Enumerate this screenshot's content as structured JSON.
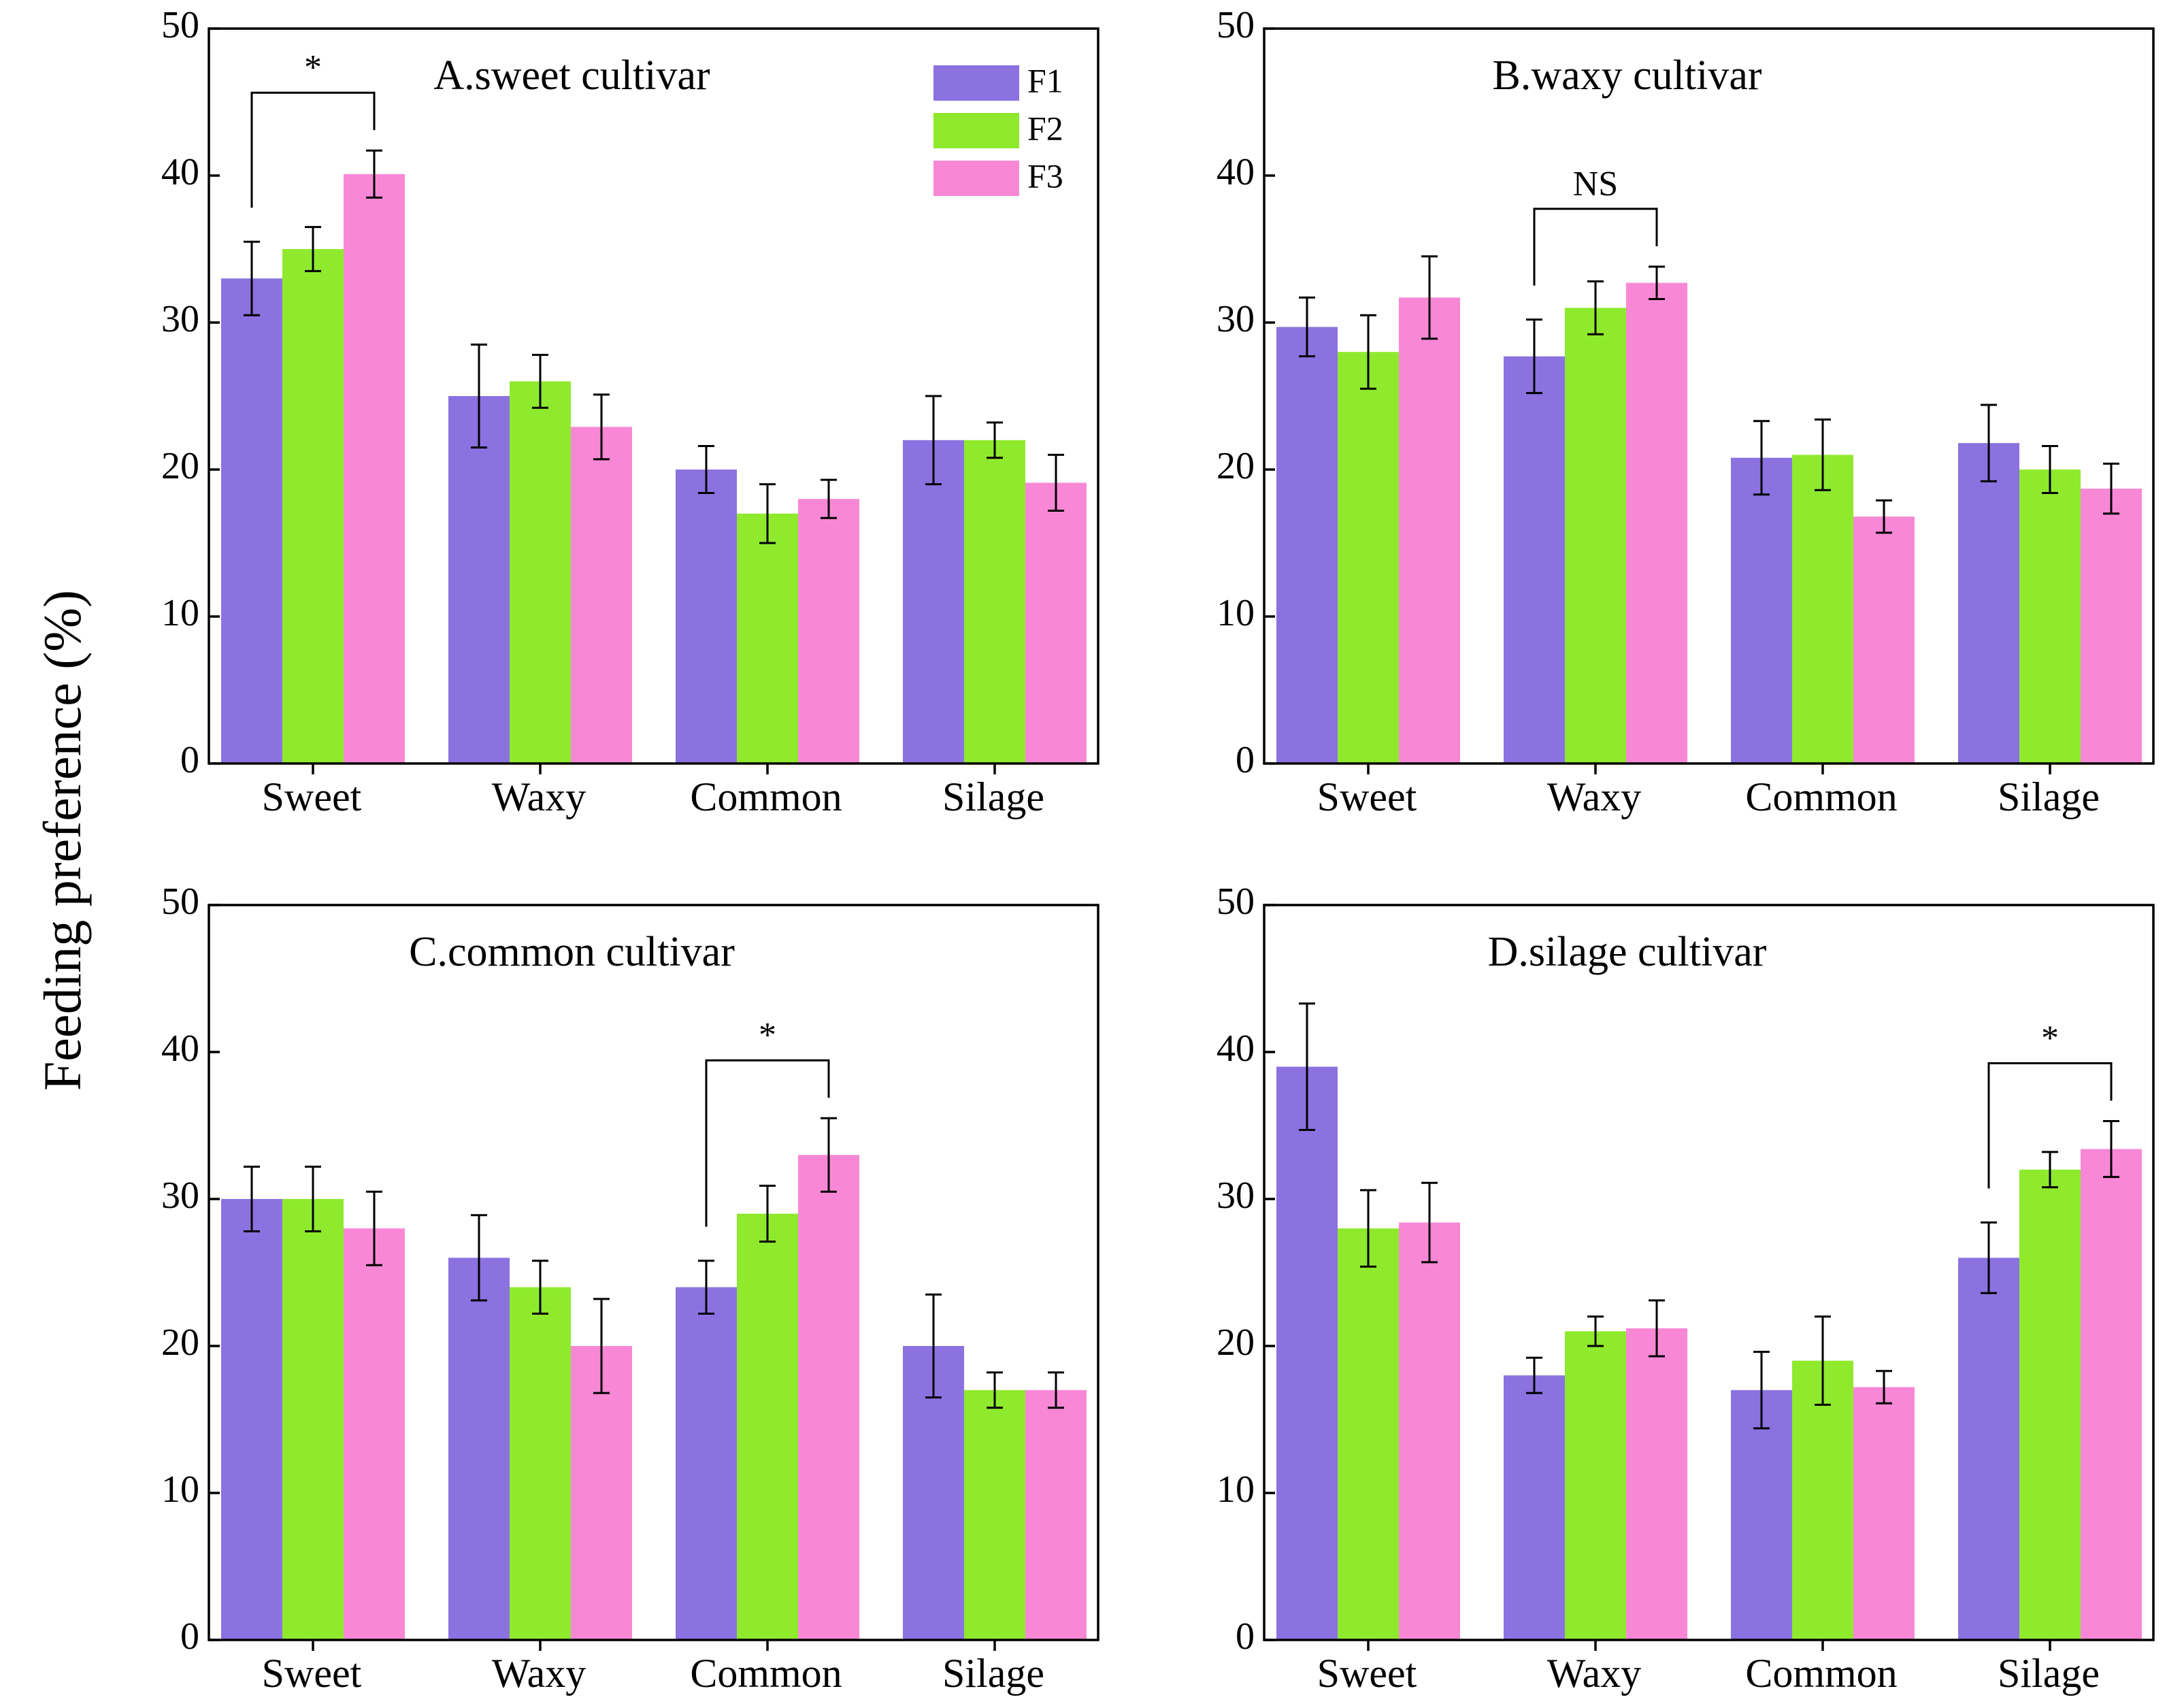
{
  "colors": {
    "F1": "#8B72E0",
    "F2": "#8FEA2E",
    "F3": "#F888D6"
  },
  "ylabel": "Feeding preference (%)",
  "legend": [
    "F1",
    "F2",
    "F3"
  ],
  "chart_data": [
    {
      "type": "bar",
      "title": "A.sweet cultivar",
      "categories": [
        "Sweet",
        "Waxy",
        "Common",
        "Silage"
      ],
      "ylim": [
        0,
        50
      ],
      "yticks": [
        "0",
        "10",
        "20",
        "30",
        "40",
        "50"
      ],
      "series": [
        {
          "name": "F1",
          "values": [
            33,
            25,
            20,
            22
          ],
          "errors": [
            2.5,
            3.5,
            1.6,
            3.0
          ]
        },
        {
          "name": "F2",
          "values": [
            35,
            26,
            17,
            22
          ],
          "errors": [
            1.5,
            1.8,
            2.0,
            1.2
          ]
        },
        {
          "name": "F3",
          "values": [
            40.1,
            22.9,
            18,
            19.1
          ],
          "errors": [
            1.6,
            2.2,
            1.3,
            1.9
          ]
        }
      ],
      "significance": {
        "label": "*",
        "category": "Sweet",
        "from": "F1",
        "to": "F3"
      },
      "legend": true
    },
    {
      "type": "bar",
      "title": "B.waxy cultivar",
      "categories": [
        "Sweet",
        "Waxy",
        "Common",
        "Silage"
      ],
      "ylim": [
        0,
        50
      ],
      "yticks": [
        "0",
        "10",
        "20",
        "30",
        "40",
        "50"
      ],
      "series": [
        {
          "name": "F1",
          "values": [
            29.7,
            27.7,
            20.8,
            21.8
          ],
          "errors": [
            2.0,
            2.5,
            2.5,
            2.6
          ]
        },
        {
          "name": "F2",
          "values": [
            28,
            31,
            21,
            20
          ],
          "errors": [
            2.5,
            1.8,
            2.4,
            1.6
          ]
        },
        {
          "name": "F3",
          "values": [
            31.7,
            32.7,
            16.8,
            18.7
          ],
          "errors": [
            2.8,
            1.1,
            1.1,
            1.7
          ]
        }
      ],
      "significance": {
        "label": "NS",
        "category": "Waxy",
        "from": "F1",
        "to": "F3"
      },
      "legend": false
    },
    {
      "type": "bar",
      "title": "C.common cultivar",
      "categories": [
        "Sweet",
        "Waxy",
        "Common",
        "Silage"
      ],
      "ylim": [
        0,
        50
      ],
      "yticks": [
        "0",
        "10",
        "20",
        "30",
        "40",
        "50"
      ],
      "series": [
        {
          "name": "F1",
          "values": [
            30,
            26,
            24,
            20
          ],
          "errors": [
            2.2,
            2.9,
            1.8,
            3.5
          ]
        },
        {
          "name": "F2",
          "values": [
            30,
            24,
            29,
            17
          ],
          "errors": [
            2.2,
            1.8,
            1.9,
            1.2
          ]
        },
        {
          "name": "F3",
          "values": [
            28,
            20,
            33,
            17
          ],
          "errors": [
            2.5,
            3.2,
            2.5,
            1.2
          ]
        }
      ],
      "significance": {
        "label": "*",
        "category": "Common",
        "from": "F1",
        "to": "F3"
      },
      "legend": false
    },
    {
      "type": "bar",
      "title": "D.silage cultivar",
      "categories": [
        "Sweet",
        "Waxy",
        "Common",
        "Silage"
      ],
      "ylim": [
        0,
        50
      ],
      "yticks": [
        "0",
        "10",
        "20",
        "30",
        "40",
        "50"
      ],
      "series": [
        {
          "name": "F1",
          "values": [
            39,
            18,
            17,
            26
          ],
          "errors": [
            4.3,
            1.2,
            2.6,
            2.4
          ]
        },
        {
          "name": "F2",
          "values": [
            28,
            21,
            19,
            32
          ],
          "errors": [
            2.6,
            1.0,
            3.0,
            1.2
          ]
        },
        {
          "name": "F3",
          "values": [
            28.4,
            21.2,
            17.2,
            33.4
          ],
          "errors": [
            2.7,
            1.9,
            1.1,
            1.9
          ]
        }
      ],
      "significance": {
        "label": "*",
        "category": "Silage",
        "from": "F1",
        "to": "F3"
      },
      "legend": false
    }
  ]
}
